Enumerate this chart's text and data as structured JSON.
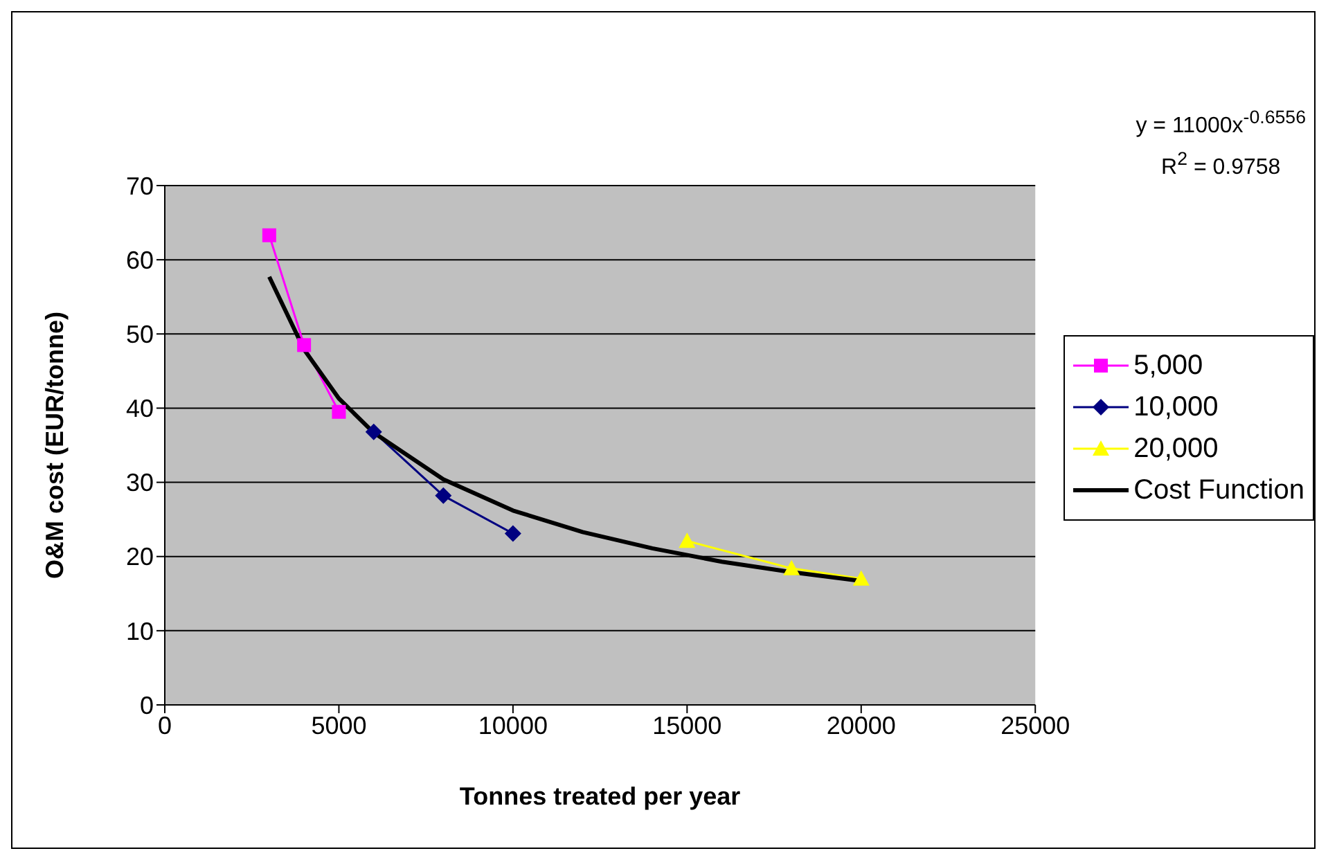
{
  "chart_data": {
    "type": "line",
    "xlabel": "Tonnes treated per year",
    "ylabel": "O&M cost (EUR/tonne)",
    "xlim": [
      0,
      25000
    ],
    "xticks": [
      0,
      5000,
      10000,
      15000,
      20000,
      25000
    ],
    "ylim": [
      0,
      70
    ],
    "yticks": [
      0,
      10,
      20,
      30,
      40,
      50,
      60,
      70
    ],
    "grid": "y",
    "legend": "right",
    "annotations": [
      "y = 11000x$^{-0.6556}$",
      "R$^{2}$ = 0.9758"
    ],
    "series": [
      {
        "name": "5,000",
        "color": "#ff00ff",
        "marker": "square",
        "x": [
          3000,
          4000,
          5000
        ],
        "values": [
          63.3,
          48.5,
          39.5
        ]
      },
      {
        "name": "10,000",
        "color": "#000080",
        "marker": "diamond",
        "x": [
          6000,
          8000,
          10000
        ],
        "values": [
          36.8,
          28.2,
          23.1
        ]
      },
      {
        "name": "20,000",
        "color": "#ffff00",
        "marker": "triangle",
        "x": [
          15000,
          18000,
          20000
        ],
        "values": [
          22.1,
          18.4,
          17.0
        ]
      },
      {
        "name": "Cost Function",
        "color": "#000000",
        "marker": "none",
        "x": [
          3000,
          4000,
          5000,
          6000,
          8000,
          10000,
          12000,
          14000,
          16000,
          18000,
          20000
        ],
        "values": [
          57.7,
          47.9,
          41.3,
          36.7,
          30.4,
          26.2,
          23.3,
          21.1,
          19.3,
          17.9,
          16.7
        ]
      }
    ]
  }
}
